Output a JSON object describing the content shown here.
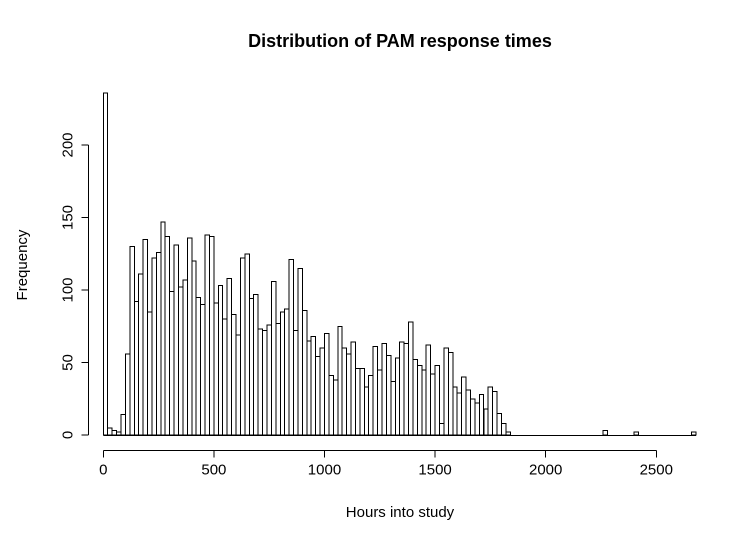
{
  "chart_data": {
    "type": "bar",
    "subtype": "histogram",
    "title": "Distribution of PAM response times",
    "xlabel": "Hours into study",
    "ylabel": "Frequency",
    "x_ticks": [
      0,
      500,
      1000,
      1500,
      2000,
      2500
    ],
    "y_ticks": [
      0,
      50,
      100,
      150,
      200
    ],
    "xlim": [
      0,
      2700
    ],
    "ylim": [
      0,
      236
    ],
    "bin_start": 0,
    "bin_width": 20,
    "grid": false,
    "legend": "none",
    "bar_fill": "#ffffff",
    "bar_stroke": "#000000",
    "counts": [
      236,
      5,
      3,
      2,
      14,
      56,
      130,
      92,
      111,
      135,
      85,
      122,
      126,
      147,
      137,
      99,
      131,
      102,
      107,
      136,
      120,
      95,
      90,
      138,
      137,
      91,
      103,
      80,
      108,
      83,
      69,
      122,
      125,
      94,
      97,
      73,
      72,
      76,
      106,
      77,
      85,
      87,
      121,
      72,
      115,
      86,
      65,
      68,
      54,
      60,
      70,
      41,
      38,
      75,
      60,
      56,
      64,
      46,
      46,
      33,
      41,
      61,
      45,
      63,
      55,
      37,
      53,
      64,
      63,
      78,
      52,
      48,
      45,
      62,
      42,
      48,
      8,
      60,
      57,
      33,
      29,
      40,
      31,
      25,
      22,
      28,
      18,
      33,
      30,
      15,
      8,
      2,
      0,
      0,
      0,
      0,
      0,
      0,
      0,
      0,
      0,
      0,
      0,
      0,
      0,
      0,
      0,
      0,
      0,
      0,
      0,
      0,
      0,
      3,
      0,
      0,
      0,
      0,
      0,
      0,
      2,
      0,
      0,
      0,
      0,
      0,
      0,
      0,
      0,
      0,
      0,
      0,
      0,
      2
    ]
  }
}
